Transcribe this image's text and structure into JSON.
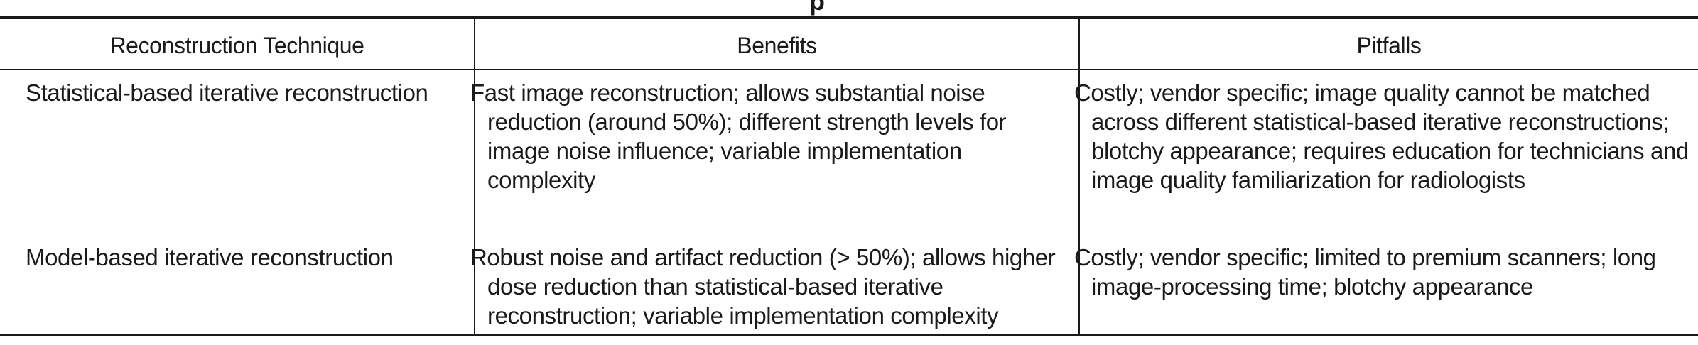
{
  "table": {
    "headers": {
      "technique": "Reconstruction Technique",
      "benefits": "Benefits",
      "pitfalls": "Pitfalls"
    },
    "rows": [
      {
        "technique": "Statistical-based iterative reconstruction",
        "benefits": "Fast image reconstruction; allows substantial noise reduction (around 50%); different strength levels for image noise influence; variable implementation complexity",
        "pitfalls": "Costly; vendor specific; image quality cannot be matched across different statistical-based iterative reconstructions; blotchy appearance; requires education for technicians and image quality familiarization for radiologists"
      },
      {
        "technique": "Model-based iterative reconstruction",
        "benefits": "Robust noise and artifact reduction (> 50%); allows higher dose reduction than statistical-based iterative reconstruction; variable implementation complexity",
        "pitfalls": "Costly; vendor specific; limited to premium scanners; long image-processing time; blotchy appearance"
      }
    ]
  }
}
